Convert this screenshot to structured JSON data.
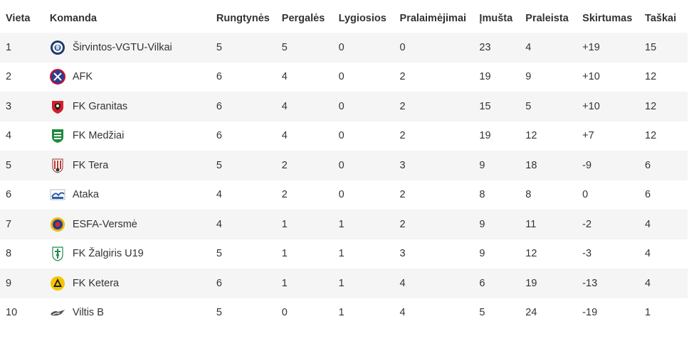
{
  "headers": {
    "rank": "Vieta",
    "team": "Komanda",
    "played": "Rungtynės",
    "won": "Pergalės",
    "drawn": "Lygiosios",
    "lost": "Pralaimėjimai",
    "goals_for": "Įmušta",
    "goals_against": "Praleista",
    "goal_diff": "Skirtumas",
    "points": "Taškai"
  },
  "rows": [
    {
      "rank": "1",
      "team": "Širvintos-VGTU-Vilkai",
      "logo": "sirvintos-logo-icon",
      "played": "5",
      "won": "5",
      "drawn": "0",
      "lost": "0",
      "goals_for": "23",
      "goals_against": "4",
      "goal_diff": "+19",
      "points": "15"
    },
    {
      "rank": "2",
      "team": "AFK",
      "logo": "afk-logo-icon",
      "played": "6",
      "won": "4",
      "drawn": "0",
      "lost": "2",
      "goals_for": "19",
      "goals_against": "9",
      "goal_diff": "+10",
      "points": "12"
    },
    {
      "rank": "3",
      "team": "FK Granitas",
      "logo": "granitas-logo-icon",
      "played": "6",
      "won": "4",
      "drawn": "0",
      "lost": "2",
      "goals_for": "15",
      "goals_against": "5",
      "goal_diff": "+10",
      "points": "12"
    },
    {
      "rank": "4",
      "team": "FK Medžiai",
      "logo": "medziai-logo-icon",
      "played": "6",
      "won": "4",
      "drawn": "0",
      "lost": "2",
      "goals_for": "19",
      "goals_against": "12",
      "goal_diff": "+7",
      "points": "12"
    },
    {
      "rank": "5",
      "team": "FK Tera",
      "logo": "tera-logo-icon",
      "played": "5",
      "won": "2",
      "drawn": "0",
      "lost": "3",
      "goals_for": "9",
      "goals_against": "18",
      "goal_diff": "-9",
      "points": "6"
    },
    {
      "rank": "6",
      "team": "Ataka",
      "logo": "ataka-logo-icon",
      "played": "4",
      "won": "2",
      "drawn": "0",
      "lost": "2",
      "goals_for": "8",
      "goals_against": "8",
      "goal_diff": "0",
      "points": "6"
    },
    {
      "rank": "7",
      "team": "ESFA-Versmė",
      "logo": "esfa-versme-logo-icon",
      "played": "4",
      "won": "1",
      "drawn": "1",
      "lost": "2",
      "goals_for": "9",
      "goals_against": "11",
      "goal_diff": "-2",
      "points": "4"
    },
    {
      "rank": "8",
      "team": "FK Žalgiris U19",
      "logo": "zalgiris-logo-icon",
      "played": "5",
      "won": "1",
      "drawn": "1",
      "lost": "3",
      "goals_for": "9",
      "goals_against": "12",
      "goal_diff": "-3",
      "points": "4"
    },
    {
      "rank": "9",
      "team": "FK Ketera",
      "logo": "ketera-logo-icon",
      "played": "6",
      "won": "1",
      "drawn": "1",
      "lost": "4",
      "goals_for": "6",
      "goals_against": "19",
      "goal_diff": "-13",
      "points": "4"
    },
    {
      "rank": "10",
      "team": "Viltis B",
      "logo": "viltis-logo-icon",
      "played": "5",
      "won": "0",
      "drawn": "1",
      "lost": "4",
      "goals_for": "5",
      "goals_against": "24",
      "goal_diff": "-19",
      "points": "1"
    }
  ]
}
